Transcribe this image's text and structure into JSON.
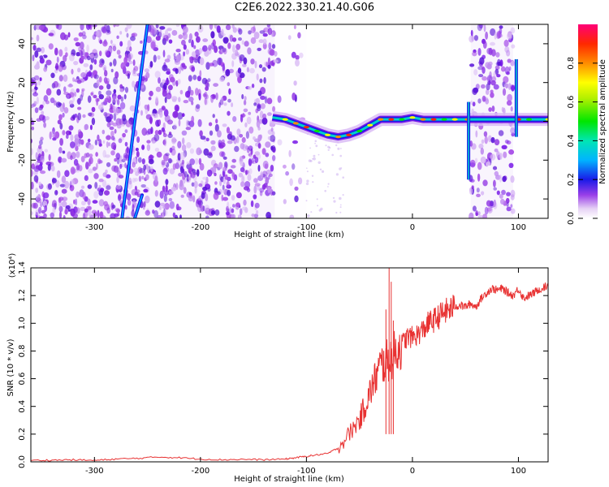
{
  "title": "C2E6.2022.330.21.40.G06",
  "chart_data": [
    {
      "type": "heatmap",
      "xlabel": "Height of straight line (km)",
      "ylabel": "Frequency (Hz)",
      "xlim": [
        -360,
        128
      ],
      "ylim": [
        -50,
        50
      ],
      "xticks": [
        -300,
        -200,
        -100,
        0,
        100
      ],
      "yticks": [
        -40,
        -20,
        0,
        20,
        40
      ],
      "colorbar": {
        "label": "Normalized spectral amplitude",
        "range": [
          0,
          1
        ],
        "ticks": [
          0.0,
          0.2,
          0.4,
          0.6,
          0.8
        ],
        "tick_labels": [
          "0.0",
          "0.2",
          "0.4",
          "0.6",
          "0.8"
        ]
      },
      "regions": [
        {
          "x": [
            -360,
            -130
          ],
          "y": [
            -50,
            50
          ],
          "density": 0.75
        },
        {
          "x": [
            -130,
            -100
          ],
          "y": [
            -50,
            50
          ],
          "density": 0.12
        },
        {
          "x": [
            55,
            95
          ],
          "y": [
            -50,
            50
          ],
          "density": 0.65
        }
      ],
      "streaks": [
        {
          "x": [
            -274,
            -250
          ],
          "y": [
            -50,
            50
          ]
        },
        {
          "x": [
            -262,
            -255
          ],
          "y": [
            -50,
            -38
          ]
        }
      ],
      "ridge": [
        {
          "x": -132,
          "y": 2
        },
        {
          "x": -120,
          "y": 1
        },
        {
          "x": -110,
          "y": -1
        },
        {
          "x": -100,
          "y": -3
        },
        {
          "x": -90,
          "y": -5
        },
        {
          "x": -80,
          "y": -7
        },
        {
          "x": -70,
          "y": -8
        },
        {
          "x": -60,
          "y": -7
        },
        {
          "x": -50,
          "y": -5
        },
        {
          "x": -40,
          "y": -2
        },
        {
          "x": -30,
          "y": 1
        },
        {
          "x": -20,
          "y": 1
        },
        {
          "x": -10,
          "y": 1
        },
        {
          "x": 0,
          "y": 2
        },
        {
          "x": 10,
          "y": 1
        },
        {
          "x": 20,
          "y": 1
        },
        {
          "x": 30,
          "y": 1
        },
        {
          "x": 40,
          "y": 1
        },
        {
          "x": 52,
          "y": 1
        },
        {
          "x": 100,
          "y": 1
        },
        {
          "x": 110,
          "y": 1
        },
        {
          "x": 128,
          "y": 1
        }
      ],
      "spikes": [
        {
          "x": 53,
          "y": [
            -30,
            10
          ]
        },
        {
          "x": 98,
          "y": [
            -8,
            32
          ]
        }
      ]
    },
    {
      "type": "line",
      "xlabel": "Height of straight line (km)",
      "ylabel": "SNR (10 * v/v)",
      "y_multiplier": "(x10⁴)",
      "xlim": [
        -360,
        128
      ],
      "ylim": [
        0,
        1.4
      ],
      "xticks": [
        -300,
        -200,
        -100,
        0,
        100
      ],
      "yticks": [
        0.0,
        0.2,
        0.4,
        0.6,
        0.8,
        1.0,
        1.2,
        1.4
      ],
      "ytick_labels": [
        "0.0",
        "0.2",
        "0.4",
        "0.6",
        "0.8",
        "1.0",
        "1.2",
        "1.4"
      ],
      "series": [
        {
          "color": "#e83232",
          "x": [
            -360,
            -340,
            -320,
            -300,
            -280,
            -260,
            -240,
            -220,
            -200,
            -180,
            -160,
            -140,
            -120,
            -110,
            -100,
            -90,
            -80,
            -70,
            -60,
            -50,
            -45,
            -40,
            -35,
            -30,
            -25,
            -20,
            -15,
            -10,
            -5,
            0,
            5,
            10,
            15,
            20,
            25,
            30,
            35,
            40,
            45,
            50,
            55,
            60,
            65,
            70,
            75,
            80,
            85,
            90,
            95,
            100,
            105,
            110,
            115,
            120,
            128
          ],
          "y": [
            0.01,
            0.012,
            0.015,
            0.01,
            0.02,
            0.025,
            0.035,
            0.03,
            0.02,
            0.015,
            0.018,
            0.015,
            0.02,
            0.03,
            0.04,
            0.05,
            0.06,
            0.1,
            0.2,
            0.3,
            0.4,
            0.5,
            0.6,
            0.7,
            0.72,
            0.75,
            0.8,
            0.85,
            0.9,
            0.9,
            0.92,
            0.95,
            1.0,
            1.02,
            1.05,
            1.08,
            1.1,
            1.12,
            1.13,
            1.12,
            1.14,
            1.12,
            1.18,
            1.22,
            1.25,
            1.24,
            1.25,
            1.22,
            1.2,
            1.25,
            1.18,
            1.2,
            1.22,
            1.25,
            1.27
          ],
          "spikes": [
            {
              "x": -22,
              "y": 1.4
            },
            {
              "x": -20,
              "y": 1.3
            },
            {
              "x": -25,
              "y": 1.1
            },
            {
              "x": -18,
              "y": 1.02
            }
          ]
        }
      ]
    }
  ]
}
